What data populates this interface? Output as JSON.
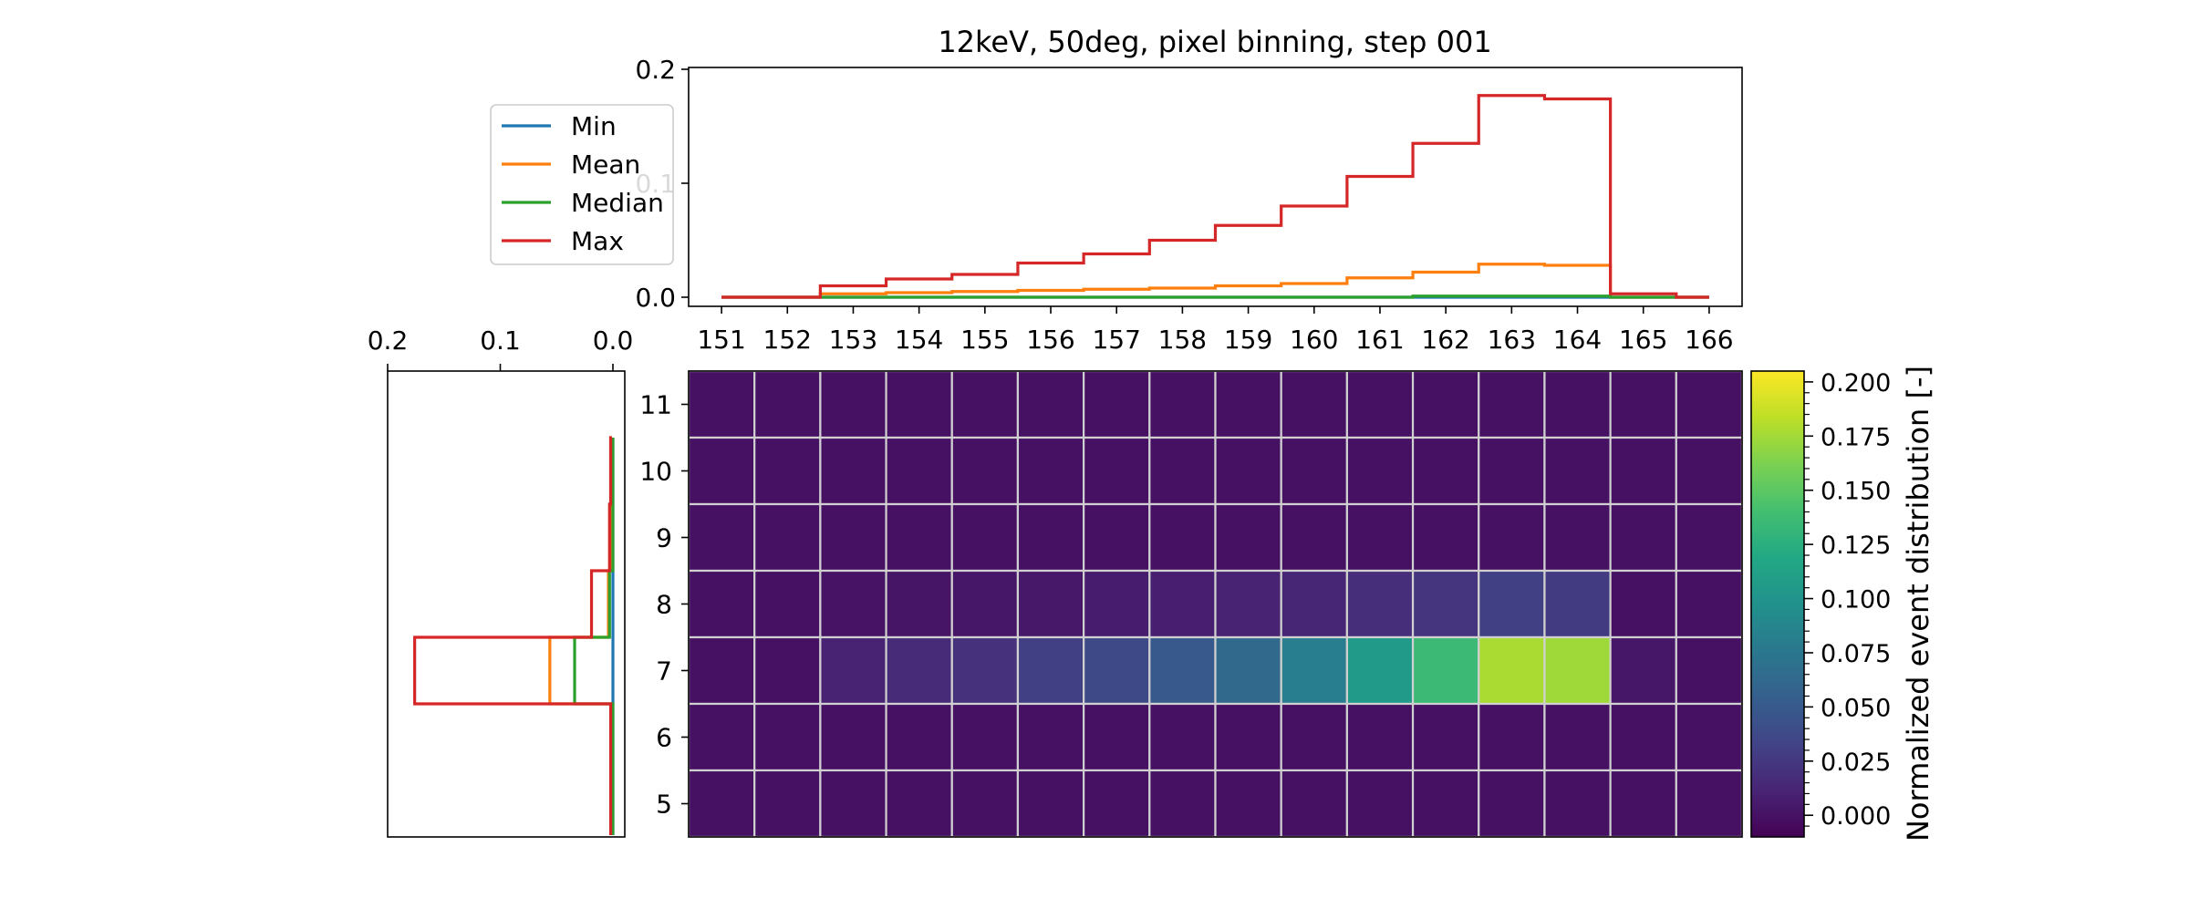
{
  "chart_data": {
    "type": "heatmap",
    "title": "12keV, 50deg, pixel binning, step 001",
    "x_ticks": [
      "151",
      "152",
      "153",
      "154",
      "155",
      "156",
      "157",
      "158",
      "159",
      "160",
      "161",
      "162",
      "163",
      "164",
      "165",
      "166"
    ],
    "y_ticks": [
      "11",
      "10",
      "9",
      "8",
      "7",
      "6",
      "5"
    ],
    "top_hist": {
      "ylim": [
        0,
        0.2
      ],
      "y_ticks": [
        "0.0",
        "0.1",
        "0.2"
      ],
      "series": [
        {
          "name": "Min",
          "color": "#1f77b4",
          "values": [
            0,
            0,
            0,
            0,
            0,
            0,
            0,
            0,
            0,
            0,
            0,
            0,
            0,
            0,
            0,
            0
          ]
        },
        {
          "name": "Mean",
          "color": "#ff7f0e",
          "values": [
            0,
            0,
            0.003,
            0.004,
            0.005,
            0.006,
            0.007,
            0.008,
            0.01,
            0.012,
            0.017,
            0.022,
            0.029,
            0.028,
            0,
            0
          ]
        },
        {
          "name": "Median",
          "color": "#2ca02c",
          "values": [
            0,
            0,
            0,
            0,
            0,
            0,
            0,
            0,
            0,
            0,
            0,
            0.001,
            0.001,
            0.001,
            0,
            0
          ]
        },
        {
          "name": "Max",
          "color": "#d62728",
          "values": [
            0,
            0,
            0.01,
            0.016,
            0.02,
            0.03,
            0.038,
            0.05,
            0.063,
            0.08,
            0.106,
            0.135,
            0.177,
            0.174,
            0.003,
            0
          ]
        }
      ]
    },
    "side_hist": {
      "xlim": [
        0.2,
        0
      ],
      "x_ticks": [
        "0.2",
        "0.1",
        "0.0"
      ],
      "rows": [
        "11",
        "10",
        "9",
        "8",
        "7",
        "6",
        "5"
      ],
      "series": [
        {
          "name": "Min",
          "color": "#1f77b4",
          "values": [
            0,
            0,
            0,
            0,
            0,
            0,
            0
          ]
        },
        {
          "name": "Mean",
          "color": "#ff7f0e",
          "values": [
            0.001,
            0.002,
            0.002,
            0.004,
            0.056,
            0.001,
            0.001
          ]
        },
        {
          "name": "Median",
          "color": "#2ca02c",
          "values": [
            0,
            0,
            0,
            0.003,
            0.034,
            0,
            0
          ]
        },
        {
          "name": "Max",
          "color": "#d62728",
          "values": [
            0.001,
            0.002,
            0.003,
            0.019,
            0.176,
            0.002,
            0.002
          ]
        }
      ]
    },
    "heatmap_values": [
      [
        0,
        0,
        0,
        0,
        0,
        0,
        0,
        0,
        0,
        0,
        0,
        0,
        0,
        0,
        0,
        0
      ],
      [
        0,
        0,
        0,
        0,
        0,
        0,
        0,
        0,
        0,
        0,
        0,
        0,
        0,
        0,
        0,
        0
      ],
      [
        0,
        0,
        0,
        0,
        0,
        0,
        0,
        0,
        0,
        0,
        0,
        0,
        0,
        0,
        0,
        0
      ],
      [
        0,
        0,
        0.001,
        0.002,
        0.003,
        0.004,
        0.006,
        0.008,
        0.01,
        0.013,
        0.018,
        0.022,
        0.03,
        0.027,
        0,
        0
      ],
      [
        0,
        0,
        0.01,
        0.016,
        0.02,
        0.03,
        0.038,
        0.05,
        0.063,
        0.08,
        0.106,
        0.135,
        0.177,
        0.174,
        0.003,
        0
      ],
      [
        0,
        0,
        0,
        0,
        0,
        0,
        0,
        0,
        0,
        0,
        0,
        0,
        0,
        0,
        0,
        0
      ],
      [
        0,
        0,
        0,
        0,
        0,
        0,
        0,
        0,
        0,
        0,
        0,
        0,
        0,
        0,
        0,
        0
      ]
    ],
    "colorbar": {
      "label": "Normalized event distribution [-]",
      "range": [
        -0.01,
        0.205
      ],
      "ticks": [
        {
          "value": 0.2,
          "label": "0.200"
        },
        {
          "value": 0.175,
          "label": "0.175"
        },
        {
          "value": 0.15,
          "label": "0.150"
        },
        {
          "value": 0.125,
          "label": "0.125"
        },
        {
          "value": 0.1,
          "label": "0.100"
        },
        {
          "value": 0.075,
          "label": "0.075"
        },
        {
          "value": 0.05,
          "label": "0.050"
        },
        {
          "value": 0.025,
          "label": "0.025"
        },
        {
          "value": 0.0,
          "label": "0.000"
        }
      ],
      "colormap": "viridis"
    },
    "legend": {
      "placement": "upper-left, outside top histogram",
      "entries": [
        {
          "label": "Min",
          "color": "#1f77b4"
        },
        {
          "label": "Mean",
          "color": "#ff7f0e"
        },
        {
          "label": "Median",
          "color": "#2ca02c"
        },
        {
          "label": "Max",
          "color": "#d62728"
        }
      ]
    },
    "grid": true
  }
}
